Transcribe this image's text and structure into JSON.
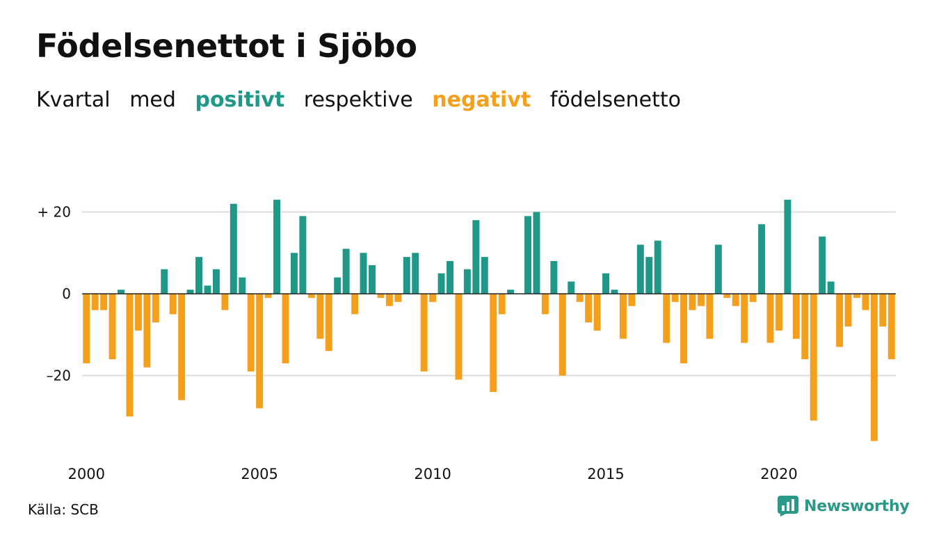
{
  "header": {
    "title": "Födelsenettot i Sjöbo",
    "subtitle_words": [
      "Kvartal",
      "med",
      "respektive",
      "födelsenetto"
    ],
    "subtitle_positive": "positivt",
    "subtitle_negative": "negativt"
  },
  "footer": {
    "source": "Källa: SCB",
    "brand": "Newsworthy"
  },
  "colors": {
    "positive": "#1f9888",
    "negative": "#f5a01d",
    "grid": "#dddddd",
    "brand": "#2a9987"
  },
  "chart_data": {
    "type": "bar",
    "title": "Födelsenettot i Sjöbo",
    "subtitle": "Kvartal med positivt respektive negativt födelsenetto",
    "xlabel": "",
    "ylabel": "",
    "x_start": "2000 Q1",
    "x_ticks": [
      "2000",
      "2005",
      "2010",
      "2015",
      "2020"
    ],
    "y_ticks": [
      {
        "value": 20,
        "label": "+ 20"
      },
      {
        "value": 0,
        "label": "0"
      },
      {
        "value": -20,
        "label": "–20"
      }
    ],
    "ylim": [
      -37,
      25
    ],
    "grid": true,
    "legend": "none",
    "values": [
      -17,
      -4,
      -4,
      -16,
      1,
      -30,
      -9,
      -18,
      -7,
      6,
      -5,
      -26,
      1,
      9,
      2,
      6,
      -4,
      22,
      4,
      -19,
      -28,
      -1,
      23,
      -17,
      10,
      19,
      -1,
      -11,
      -14,
      4,
      11,
      -5,
      10,
      7,
      -1,
      -3,
      -2,
      9,
      10,
      -19,
      -2,
      5,
      8,
      -21,
      6,
      18,
      9,
      -24,
      -5,
      1,
      0,
      19,
      20,
      -5,
      8,
      -20,
      3,
      -2,
      -7,
      -9,
      5,
      1,
      -11,
      -3,
      12,
      9,
      13,
      -12,
      -2,
      -17,
      -4,
      -3,
      -11,
      12,
      -1,
      -3,
      -12,
      -2,
      17,
      -12,
      -9,
      23,
      -11,
      -16,
      -31,
      14,
      3,
      -13,
      -8,
      -1,
      -4,
      -36,
      -8,
      -16
    ]
  }
}
